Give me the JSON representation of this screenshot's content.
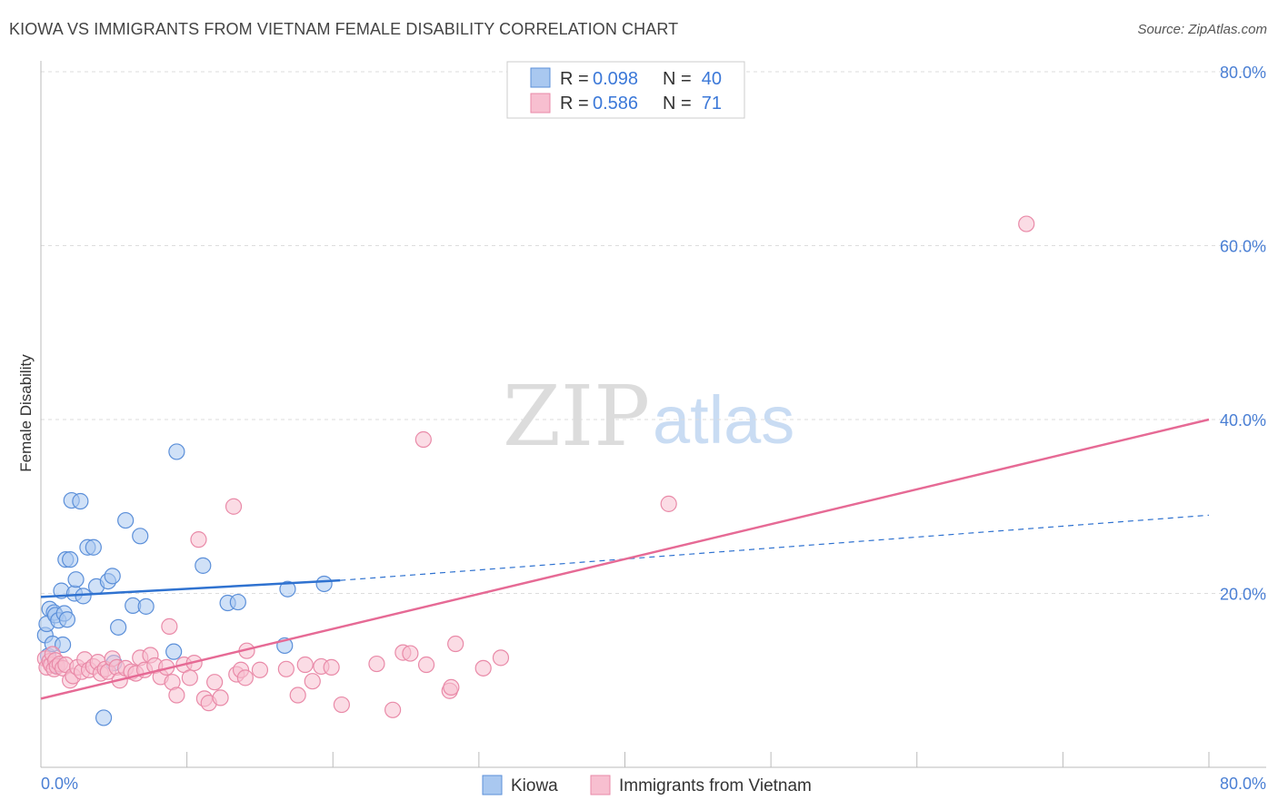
{
  "title": "KIOWA VS IMMIGRANTS FROM VIETNAM FEMALE DISABILITY CORRELATION CHART",
  "source": "Source: ZipAtlas.com",
  "watermark": {
    "zip": "ZIP",
    "atlas": "atlas"
  },
  "colors": {
    "kiowa_fill": "#a9c8f0",
    "kiowa_stroke": "#5b8fd9",
    "kiowa_line": "#2f72d0",
    "vietnam_fill": "#f7bfd0",
    "vietnam_stroke": "#e98aa8",
    "vietnam_line": "#e66a95",
    "axis_label": "#4a7fd4",
    "grid": "#dddddd"
  },
  "legend": {
    "rows": [
      {
        "r_label": "R =",
        "r_value": "0.098",
        "n_label": "N =",
        "n_value": "40"
      },
      {
        "r_label": "R =",
        "r_value": "0.586",
        "n_label": "N =",
        "n_value": "71"
      }
    ]
  },
  "bottom_legend": {
    "kiowa": "Kiowa",
    "vietnam": "Immigrants from Vietnam"
  },
  "chart_data": {
    "type": "scatter",
    "title": "KIOWA VS IMMIGRANTS FROM VIETNAM FEMALE DISABILITY CORRELATION CHART",
    "xlabel": "",
    "ylabel": "Female Disability",
    "xlim": [
      0,
      80
    ],
    "ylim": [
      0,
      80
    ],
    "x_tick_labels": [
      "0.0%",
      "80.0%"
    ],
    "y_tick_labels": [
      "20.0%",
      "40.0%",
      "60.0%",
      "80.0%"
    ],
    "y_ticks": [
      20,
      40,
      60,
      80
    ],
    "series": [
      {
        "name": "Kiowa",
        "r": 0.098,
        "n": 40,
        "trend": {
          "x": [
            0,
            20.5
          ],
          "y": [
            19.6,
            21.5
          ],
          "dashed_extension": {
            "x": [
              20.5,
              80
            ],
            "y": [
              21.5,
              29.0
            ]
          }
        },
        "points": [
          [
            0.3,
            15.2
          ],
          [
            0.4,
            16.5
          ],
          [
            0.5,
            12.8
          ],
          [
            0.6,
            18.2
          ],
          [
            0.8,
            14.2
          ],
          [
            0.9,
            17.8
          ],
          [
            1.0,
            17.5
          ],
          [
            1.2,
            16.9
          ],
          [
            1.4,
            20.3
          ],
          [
            1.5,
            14.1
          ],
          [
            1.6,
            17.7
          ],
          [
            1.7,
            23.9
          ],
          [
            1.8,
            17.0
          ],
          [
            2.0,
            23.9
          ],
          [
            2.1,
            30.7
          ],
          [
            2.3,
            20.0
          ],
          [
            2.4,
            21.6
          ],
          [
            2.7,
            30.6
          ],
          [
            2.9,
            19.7
          ],
          [
            3.2,
            25.3
          ],
          [
            3.6,
            25.3
          ],
          [
            3.8,
            20.8
          ],
          [
            4.3,
            5.7
          ],
          [
            4.6,
            21.4
          ],
          [
            4.9,
            22.0
          ],
          [
            5.3,
            16.1
          ],
          [
            5.8,
            28.4
          ],
          [
            6.3,
            18.6
          ],
          [
            6.8,
            26.6
          ],
          [
            7.2,
            18.5
          ],
          [
            9.1,
            13.3
          ],
          [
            9.3,
            36.3
          ],
          [
            11.1,
            23.2
          ],
          [
            12.8,
            18.9
          ],
          [
            13.5,
            19.0
          ],
          [
            16.7,
            14.0
          ],
          [
            16.9,
            20.5
          ],
          [
            19.4,
            21.1
          ],
          [
            5.0,
            12.0
          ],
          [
            1.1,
            11.7
          ]
        ]
      },
      {
        "name": "Immigrants from Vietnam",
        "r": 0.586,
        "n": 71,
        "trend": {
          "x": [
            0,
            80
          ],
          "y": [
            7.9,
            40.0
          ]
        },
        "points": [
          [
            0.3,
            12.5
          ],
          [
            0.4,
            11.5
          ],
          [
            0.6,
            12.2
          ],
          [
            0.7,
            11.8
          ],
          [
            0.8,
            13.0
          ],
          [
            0.9,
            11.3
          ],
          [
            1.0,
            12.3
          ],
          [
            1.1,
            11.6
          ],
          [
            1.3,
            11.9
          ],
          [
            1.5,
            11.4
          ],
          [
            1.7,
            11.8
          ],
          [
            2.0,
            10.0
          ],
          [
            2.2,
            10.5
          ],
          [
            2.5,
            11.5
          ],
          [
            2.8,
            11.0
          ],
          [
            3.0,
            12.4
          ],
          [
            3.3,
            11.2
          ],
          [
            3.6,
            11.6
          ],
          [
            3.9,
            12.1
          ],
          [
            4.1,
            10.8
          ],
          [
            4.4,
            11.3
          ],
          [
            4.6,
            11.0
          ],
          [
            4.9,
            12.5
          ],
          [
            5.2,
            11.5
          ],
          [
            5.4,
            10.0
          ],
          [
            5.8,
            11.4
          ],
          [
            6.2,
            11.0
          ],
          [
            6.5,
            10.8
          ],
          [
            6.8,
            12.6
          ],
          [
            7.1,
            11.2
          ],
          [
            7.5,
            12.9
          ],
          [
            7.8,
            11.7
          ],
          [
            8.2,
            10.4
          ],
          [
            8.6,
            11.5
          ],
          [
            8.8,
            16.2
          ],
          [
            9.0,
            9.8
          ],
          [
            9.3,
            8.3
          ],
          [
            9.8,
            11.8
          ],
          [
            10.2,
            10.3
          ],
          [
            10.5,
            12.0
          ],
          [
            10.8,
            26.2
          ],
          [
            11.2,
            7.9
          ],
          [
            11.5,
            7.4
          ],
          [
            11.9,
            9.8
          ],
          [
            12.3,
            8.0
          ],
          [
            13.2,
            30.0
          ],
          [
            13.4,
            10.7
          ],
          [
            13.7,
            11.2
          ],
          [
            14.0,
            10.3
          ],
          [
            14.1,
            13.4
          ],
          [
            15.0,
            11.2
          ],
          [
            16.8,
            11.3
          ],
          [
            17.6,
            8.3
          ],
          [
            18.1,
            11.8
          ],
          [
            18.6,
            9.9
          ],
          [
            19.2,
            11.6
          ],
          [
            19.9,
            11.5
          ],
          [
            20.6,
            7.2
          ],
          [
            23.0,
            11.9
          ],
          [
            24.1,
            6.6
          ],
          [
            24.8,
            13.2
          ],
          [
            25.3,
            13.1
          ],
          [
            26.2,
            37.7
          ],
          [
            26.4,
            11.8
          ],
          [
            28.0,
            8.8
          ],
          [
            28.1,
            9.2
          ],
          [
            28.4,
            14.2
          ],
          [
            30.3,
            11.4
          ],
          [
            31.5,
            12.6
          ],
          [
            43.0,
            30.3
          ],
          [
            67.5,
            62.5
          ]
        ]
      }
    ]
  }
}
